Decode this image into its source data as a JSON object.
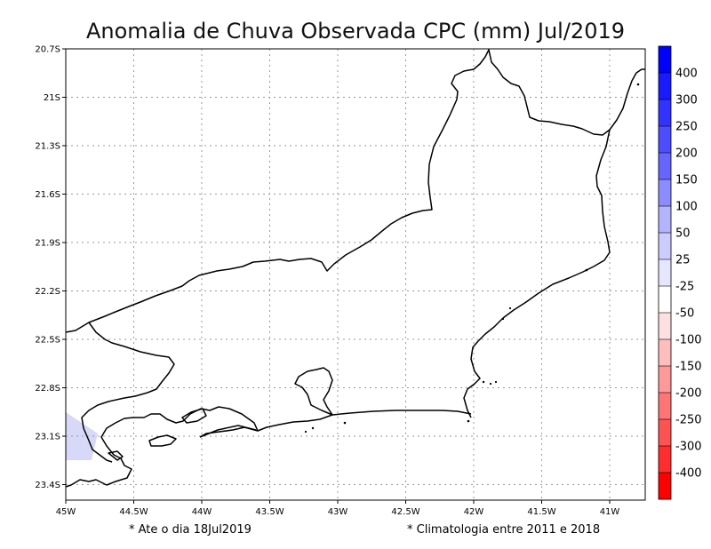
{
  "title": "Anomalia de Chuva Observada CPC (mm) Jul/2019",
  "y_axis": {
    "ticks": [
      "20.7S",
      "21S",
      "21.3S",
      "21.6S",
      "21.9S",
      "22.2S",
      "22.5S",
      "22.8S",
      "23.1S",
      "23.4S"
    ]
  },
  "x_axis": {
    "ticks": [
      "45W",
      "44.5W",
      "44W",
      "43.5W",
      "43W",
      "42.5W",
      "42W",
      "41.5W",
      "41W"
    ]
  },
  "colorbar": {
    "labels": [
      "400",
      "300",
      "250",
      "200",
      "150",
      "100",
      "50",
      "25",
      "-25",
      "-50",
      "-100",
      "-150",
      "-200",
      "-250",
      "-300",
      "-400"
    ],
    "colors": [
      "#0000ff",
      "#1a1aff",
      "#3333ff",
      "#4d4dff",
      "#6666ff",
      "#8c8cff",
      "#b3b3ff",
      "#ccccff",
      "#e6e6ff",
      "#ffffff",
      "#ffe0e0",
      "#ffbdbd",
      "#ff9999",
      "#ff7575",
      "#ff5252",
      "#ff2e2e",
      "#ff0000"
    ]
  },
  "footer": {
    "left": "* Ate o dia 18Jul2019",
    "right": "* Climatologia entre 2011 e 2018"
  },
  "colors": {
    "frame": "#000000",
    "grid": "#9a9a9a",
    "coast": "#000000",
    "anomaly_patch": "#d8d8f8"
  }
}
